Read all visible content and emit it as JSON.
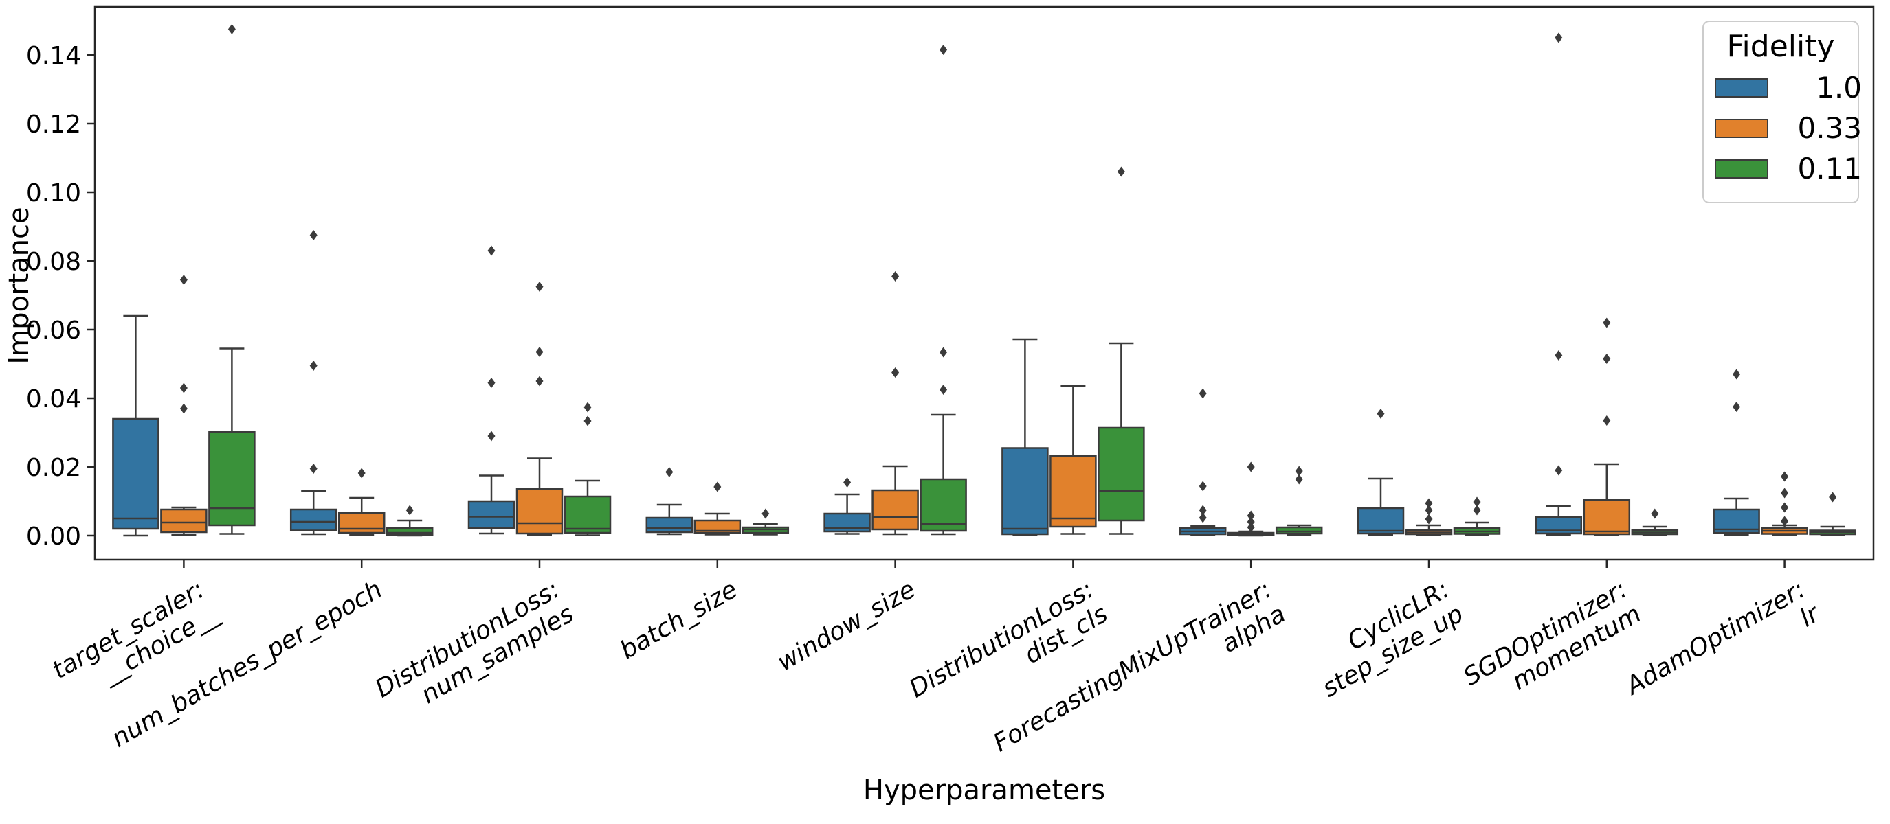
{
  "chart_data": {
    "type": "grouped_boxplot",
    "title": "",
    "xlabel": "Hyperparameters",
    "ylabel": "Importance",
    "ylim": [
      -0.007,
      0.154
    ],
    "grid": false,
    "legend": {
      "title": "Fidelity",
      "position": "upper right",
      "entries": [
        {
          "label": "1.0",
          "color": "#3274a1"
        },
        {
          "label": "0.33",
          "color": "#e1812c"
        },
        {
          "label": "0.11",
          "color": "#3a923a"
        }
      ]
    },
    "yticks": [
      {
        "v": 0.0,
        "label": "0.00"
      },
      {
        "v": 0.02,
        "label": "0.02"
      },
      {
        "v": 0.04,
        "label": "0.04"
      },
      {
        "v": 0.06,
        "label": "0.06"
      },
      {
        "v": 0.08,
        "label": "0.08"
      },
      {
        "v": 0.1,
        "label": "0.10"
      },
      {
        "v": 0.12,
        "label": "0.12"
      },
      {
        "v": 0.14,
        "label": "0.14"
      }
    ],
    "categories": [
      "target_scaler:\n__choice__",
      "num_batches_per_epoch",
      "DistributionLoss:\nnum_samples",
      "batch_size",
      "window_size",
      "DistributionLoss:\ndist_cls",
      "ForecastingMixUpTrainer:\nalpha",
      "CyclicLR:\nstep_size_up",
      "SGDOptimizer:\nmomentum",
      "AdamOptimizer:\nlr"
    ],
    "series": [
      {
        "name": "1.0",
        "color": "#3274a1",
        "boxes": [
          {
            "lo": 0.0,
            "q1": 0.002,
            "med": 0.005,
            "q3": 0.034,
            "hi": 0.064,
            "out": []
          },
          {
            "lo": 0.0004,
            "q1": 0.0015,
            "med": 0.004,
            "q3": 0.0076,
            "hi": 0.013,
            "out": [
              0.0195,
              0.0495,
              0.0875
            ]
          },
          {
            "lo": 0.0006,
            "q1": 0.0022,
            "med": 0.0055,
            "q3": 0.01,
            "hi": 0.0175,
            "out": [
              0.029,
              0.0445,
              0.083
            ]
          },
          {
            "lo": 0.0004,
            "q1": 0.001,
            "med": 0.0022,
            "q3": 0.0052,
            "hi": 0.009,
            "out": [
              0.0185
            ]
          },
          {
            "lo": 0.0005,
            "q1": 0.0012,
            "med": 0.0022,
            "q3": 0.0064,
            "hi": 0.012,
            "out": [
              0.0155
            ]
          },
          {
            "lo": 0.0002,
            "q1": 0.0004,
            "med": 0.002,
            "q3": 0.0255,
            "hi": 0.0572,
            "out": []
          },
          {
            "lo": 0.0001,
            "q1": 0.0004,
            "med": 0.0012,
            "q3": 0.0022,
            "hi": 0.0028,
            "out": [
              0.0052,
              0.0074,
              0.0144,
              0.0414
            ]
          },
          {
            "lo": 0.0002,
            "q1": 0.0006,
            "med": 0.0014,
            "q3": 0.008,
            "hi": 0.0166,
            "out": [
              0.0355
            ]
          },
          {
            "lo": 0.0002,
            "q1": 0.0006,
            "med": 0.0015,
            "q3": 0.0054,
            "hi": 0.0086,
            "out": [
              0.019,
              0.0525,
              0.145
            ]
          },
          {
            "lo": 0.0002,
            "q1": 0.0008,
            "med": 0.0018,
            "q3": 0.0076,
            "hi": 0.0108,
            "out": [
              0.0375,
              0.047
            ]
          }
        ]
      },
      {
        "name": "0.33",
        "color": "#e1812c",
        "boxes": [
          {
            "lo": 0.0002,
            "q1": 0.001,
            "med": 0.0038,
            "q3": 0.0076,
            "hi": 0.0082,
            "out": [
              0.037,
              0.043,
              0.0745
            ]
          },
          {
            "lo": 0.0002,
            "q1": 0.0008,
            "med": 0.002,
            "q3": 0.0066,
            "hi": 0.011,
            "out": [
              0.0182
            ]
          },
          {
            "lo": 0.0002,
            "q1": 0.0006,
            "med": 0.0036,
            "q3": 0.0136,
            "hi": 0.0225,
            "out": [
              0.045,
              0.0535,
              0.0725
            ]
          },
          {
            "lo": 0.0003,
            "q1": 0.0008,
            "med": 0.0014,
            "q3": 0.0044,
            "hi": 0.0064,
            "out": [
              0.0142
            ]
          },
          {
            "lo": 0.0004,
            "q1": 0.0018,
            "med": 0.0054,
            "q3": 0.0132,
            "hi": 0.0202,
            "out": [
              0.0475,
              0.0755
            ]
          },
          {
            "lo": 0.0005,
            "q1": 0.0026,
            "med": 0.005,
            "q3": 0.0232,
            "hi": 0.0436,
            "out": []
          },
          {
            "lo": 0.0,
            "q1": 0.0001,
            "med": 0.0003,
            "q3": 0.0008,
            "hi": 0.0012,
            "out": [
              0.0024,
              0.004,
              0.0058,
              0.02
            ]
          },
          {
            "lo": 0.0001,
            "q1": 0.0004,
            "med": 0.0009,
            "q3": 0.0016,
            "hi": 0.003,
            "out": [
              0.0048,
              0.0074,
              0.0094
            ]
          },
          {
            "lo": 0.0001,
            "q1": 0.0004,
            "med": 0.0012,
            "q3": 0.0104,
            "hi": 0.0208,
            "out": [
              0.0335,
              0.0515,
              0.062
            ]
          },
          {
            "lo": 0.0001,
            "q1": 0.0005,
            "med": 0.0014,
            "q3": 0.0022,
            "hi": 0.003,
            "out": [
              0.0042,
              0.0082,
              0.0124,
              0.0172
            ]
          }
        ]
      },
      {
        "name": "0.11",
        "color": "#3a923a",
        "boxes": [
          {
            "lo": 0.0005,
            "q1": 0.003,
            "med": 0.008,
            "q3": 0.0302,
            "hi": 0.0545,
            "out": [
              0.1475
            ]
          },
          {
            "lo": 0.0,
            "q1": 0.0002,
            "med": 0.0008,
            "q3": 0.0022,
            "hi": 0.0044,
            "out": [
              0.0074
            ]
          },
          {
            "lo": 0.0001,
            "q1": 0.0008,
            "med": 0.002,
            "q3": 0.0114,
            "hi": 0.016,
            "out": [
              0.0334,
              0.0374
            ]
          },
          {
            "lo": 0.0003,
            "q1": 0.0008,
            "med": 0.0018,
            "q3": 0.0024,
            "hi": 0.0034,
            "out": [
              0.0064
            ]
          },
          {
            "lo": 0.0004,
            "q1": 0.0014,
            "med": 0.0034,
            "q3": 0.0164,
            "hi": 0.0352,
            "out": [
              0.0425,
              0.0534,
              0.1415
            ]
          },
          {
            "lo": 0.0005,
            "q1": 0.0044,
            "med": 0.013,
            "q3": 0.0314,
            "hi": 0.056,
            "out": [
              0.106
            ]
          },
          {
            "lo": 0.0002,
            "q1": 0.0006,
            "med": 0.0012,
            "q3": 0.0024,
            "hi": 0.003,
            "out": [
              0.0164,
              0.0188
            ]
          },
          {
            "lo": 0.0002,
            "q1": 0.0005,
            "med": 0.0012,
            "q3": 0.0022,
            "hi": 0.0038,
            "out": [
              0.0074,
              0.0098
            ]
          },
          {
            "lo": 0.0001,
            "q1": 0.0004,
            "med": 0.0009,
            "q3": 0.0016,
            "hi": 0.0026,
            "out": [
              0.0064
            ]
          },
          {
            "lo": 0.0001,
            "q1": 0.0004,
            "med": 0.001,
            "q3": 0.0015,
            "hi": 0.0026,
            "out": [
              0.0112
            ]
          }
        ]
      }
    ],
    "style": {
      "edge_color": "#3b3b3b",
      "spine_color": "#262626",
      "outlier_color": "#3b3b3b",
      "background": "#ffffff"
    }
  }
}
